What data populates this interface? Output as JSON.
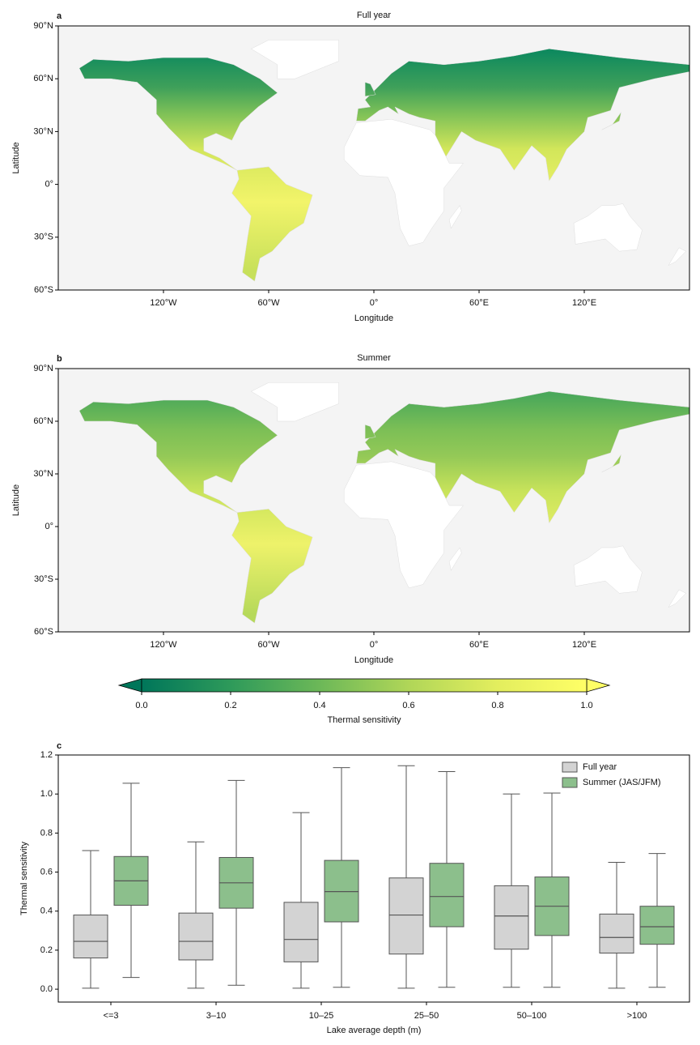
{
  "chart_data": [
    {
      "type": "map",
      "panel": "a",
      "title": "Full year",
      "xlabel": "Longitude",
      "ylabel": "Latitude",
      "xlim": [
        -180,
        180
      ],
      "ylim": [
        -60,
        90
      ],
      "xticks": [
        {
          "value": -120,
          "label": "120°W"
        },
        {
          "value": -60,
          "label": "60°W"
        },
        {
          "value": 0,
          "label": "0°"
        },
        {
          "value": 60,
          "label": "60°E"
        },
        {
          "value": 120,
          "label": "120°E"
        }
      ],
      "yticks": [
        {
          "value": -60,
          "label": "60°S"
        },
        {
          "value": -30,
          "label": "30°S"
        },
        {
          "value": 0,
          "label": "0°"
        },
        {
          "value": 30,
          "label": "30°N"
        },
        {
          "value": 60,
          "label": "60°N"
        },
        {
          "value": 90,
          "label": "90°N"
        }
      ]
    },
    {
      "type": "map",
      "panel": "b",
      "title": "Summer",
      "xlabel": "Longitude",
      "ylabel": "Latitude",
      "xlim": [
        -180,
        180
      ],
      "ylim": [
        -60,
        90
      ],
      "xticks": [
        {
          "value": -120,
          "label": "120°W"
        },
        {
          "value": -60,
          "label": "60°W"
        },
        {
          "value": 0,
          "label": "0°"
        },
        {
          "value": 60,
          "label": "60°E"
        },
        {
          "value": 120,
          "label": "120°E"
        }
      ],
      "yticks": [
        {
          "value": -60,
          "label": "60°S"
        },
        {
          "value": -30,
          "label": "30°S"
        },
        {
          "value": 0,
          "label": "0°"
        },
        {
          "value": 30,
          "label": "30°N"
        },
        {
          "value": 60,
          "label": "60°N"
        },
        {
          "value": 90,
          "label": "90°N"
        }
      ]
    },
    {
      "type": "colorbar",
      "xlabel": "Thermal sensitivity",
      "xlim": [
        0,
        1
      ],
      "xticks": [
        {
          "value": 0,
          "label": "0.0"
        },
        0.2,
        0.4,
        0.6,
        0.8,
        {
          "value": 1,
          "label": "1.0"
        }
      ],
      "colormap": [
        "#00765a",
        "#2e9a5a",
        "#6cb858",
        "#b0d658",
        "#e3ee5e",
        "#ffff66"
      ]
    },
    {
      "type": "box",
      "panel": "c",
      "xlabel": "Lake average depth (m)",
      "ylabel": "Thermal sensitivity",
      "categories": [
        "<=3",
        "3–10",
        "10–25",
        "25–50",
        "50–100",
        ">100"
      ],
      "ylim": [
        -0.066,
        1.2
      ],
      "yticks": [
        {
          "value": 0,
          "label": "0.0"
        },
        0.2,
        0.4,
        0.6,
        0.8,
        {
          "value": 1,
          "label": "1.0"
        },
        1.2
      ],
      "legend": "upper right",
      "series": [
        {
          "name": "Full year",
          "color": "#d3d3d3",
          "whislo": [
            0.005,
            0.005,
            0.005,
            0.005,
            0.01,
            0.005
          ],
          "q1": [
            0.16,
            0.15,
            0.14,
            0.18,
            0.205,
            0.185
          ],
          "median": [
            0.245,
            0.245,
            0.255,
            0.38,
            0.375,
            0.265
          ],
          "q3": [
            0.38,
            0.39,
            0.445,
            0.57,
            0.53,
            0.385
          ],
          "whishi": [
            0.71,
            0.755,
            0.905,
            1.145,
            1.0,
            0.65
          ]
        },
        {
          "name": "Summer (JAS/JFM)",
          "color": "#8cbf8c",
          "whislo": [
            0.06,
            0.02,
            0.01,
            0.01,
            0.01,
            0.01
          ],
          "q1": [
            0.43,
            0.415,
            0.345,
            0.32,
            0.275,
            0.23
          ],
          "median": [
            0.555,
            0.545,
            0.5,
            0.475,
            0.425,
            0.32
          ],
          "q3": [
            0.68,
            0.675,
            0.66,
            0.645,
            0.575,
            0.425
          ],
          "whishi": [
            1.055,
            1.07,
            1.135,
            1.115,
            1.005,
            0.695
          ]
        }
      ]
    }
  ]
}
